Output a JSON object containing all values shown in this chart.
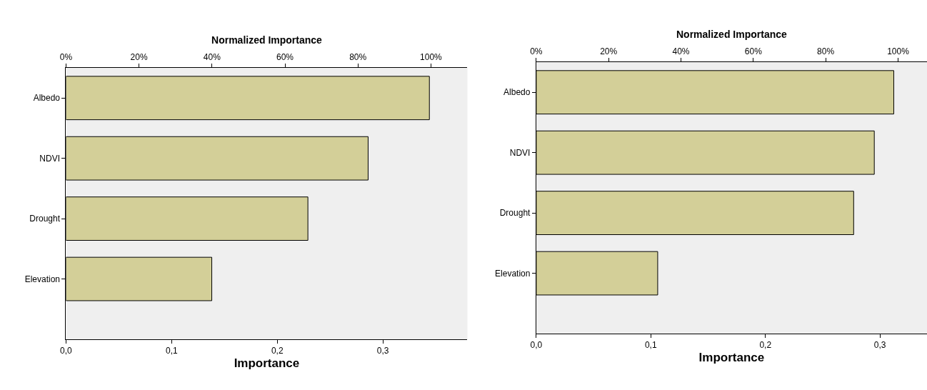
{
  "chart_data": [
    {
      "type": "bar",
      "orientation": "horizontal",
      "xlabel": "Importance",
      "x2label": "Normalized Importance",
      "categories": [
        "Albedo",
        "NDVI",
        "Drought",
        "Elevation"
      ],
      "values": [
        0.344,
        0.286,
        0.229,
        0.138
      ],
      "color": "#d3cf98",
      "xlim": [
        0,
        0.38
      ],
      "xticks": [
        {
          "value": 0,
          "label": "0,0"
        },
        {
          "value": 0.1,
          "label": "0,1"
        },
        {
          "value": 0.2,
          "label": "0,2"
        },
        {
          "value": 0.3,
          "label": "0,3"
        }
      ],
      "x2lim": [
        0,
        110
      ],
      "x2ticks": [
        {
          "value": 0,
          "label": "0%"
        },
        {
          "value": 20,
          "label": "20%"
        },
        {
          "value": 40,
          "label": "40%"
        },
        {
          "value": 60,
          "label": "60%"
        },
        {
          "value": 80,
          "label": "80%"
        },
        {
          "value": 100,
          "label": "100%"
        }
      ],
      "grid": false
    },
    {
      "type": "bar",
      "orientation": "horizontal",
      "xlabel": "Importance",
      "x2label": "Normalized Importance",
      "categories": [
        "Albedo",
        "NDVI",
        "Drought",
        "Elevation"
      ],
      "values": [
        0.312,
        0.295,
        0.277,
        0.106
      ],
      "color": "#d3cf98",
      "xlim": [
        0,
        0.341
      ],
      "xticks": [
        {
          "value": 0,
          "label": "0,0"
        },
        {
          "value": 0.1,
          "label": "0,1"
        },
        {
          "value": 0.2,
          "label": "0,2"
        },
        {
          "value": 0.3,
          "label": "0,3"
        }
      ],
      "x2lim": [
        0,
        108
      ],
      "x2ticks": [
        {
          "value": 0,
          "label": "0%"
        },
        {
          "value": 20,
          "label": "20%"
        },
        {
          "value": 40,
          "label": "40%"
        },
        {
          "value": 60,
          "label": "60%"
        },
        {
          "value": 80,
          "label": "80%"
        },
        {
          "value": 100,
          "label": "100%"
        }
      ],
      "grid": false
    }
  ]
}
